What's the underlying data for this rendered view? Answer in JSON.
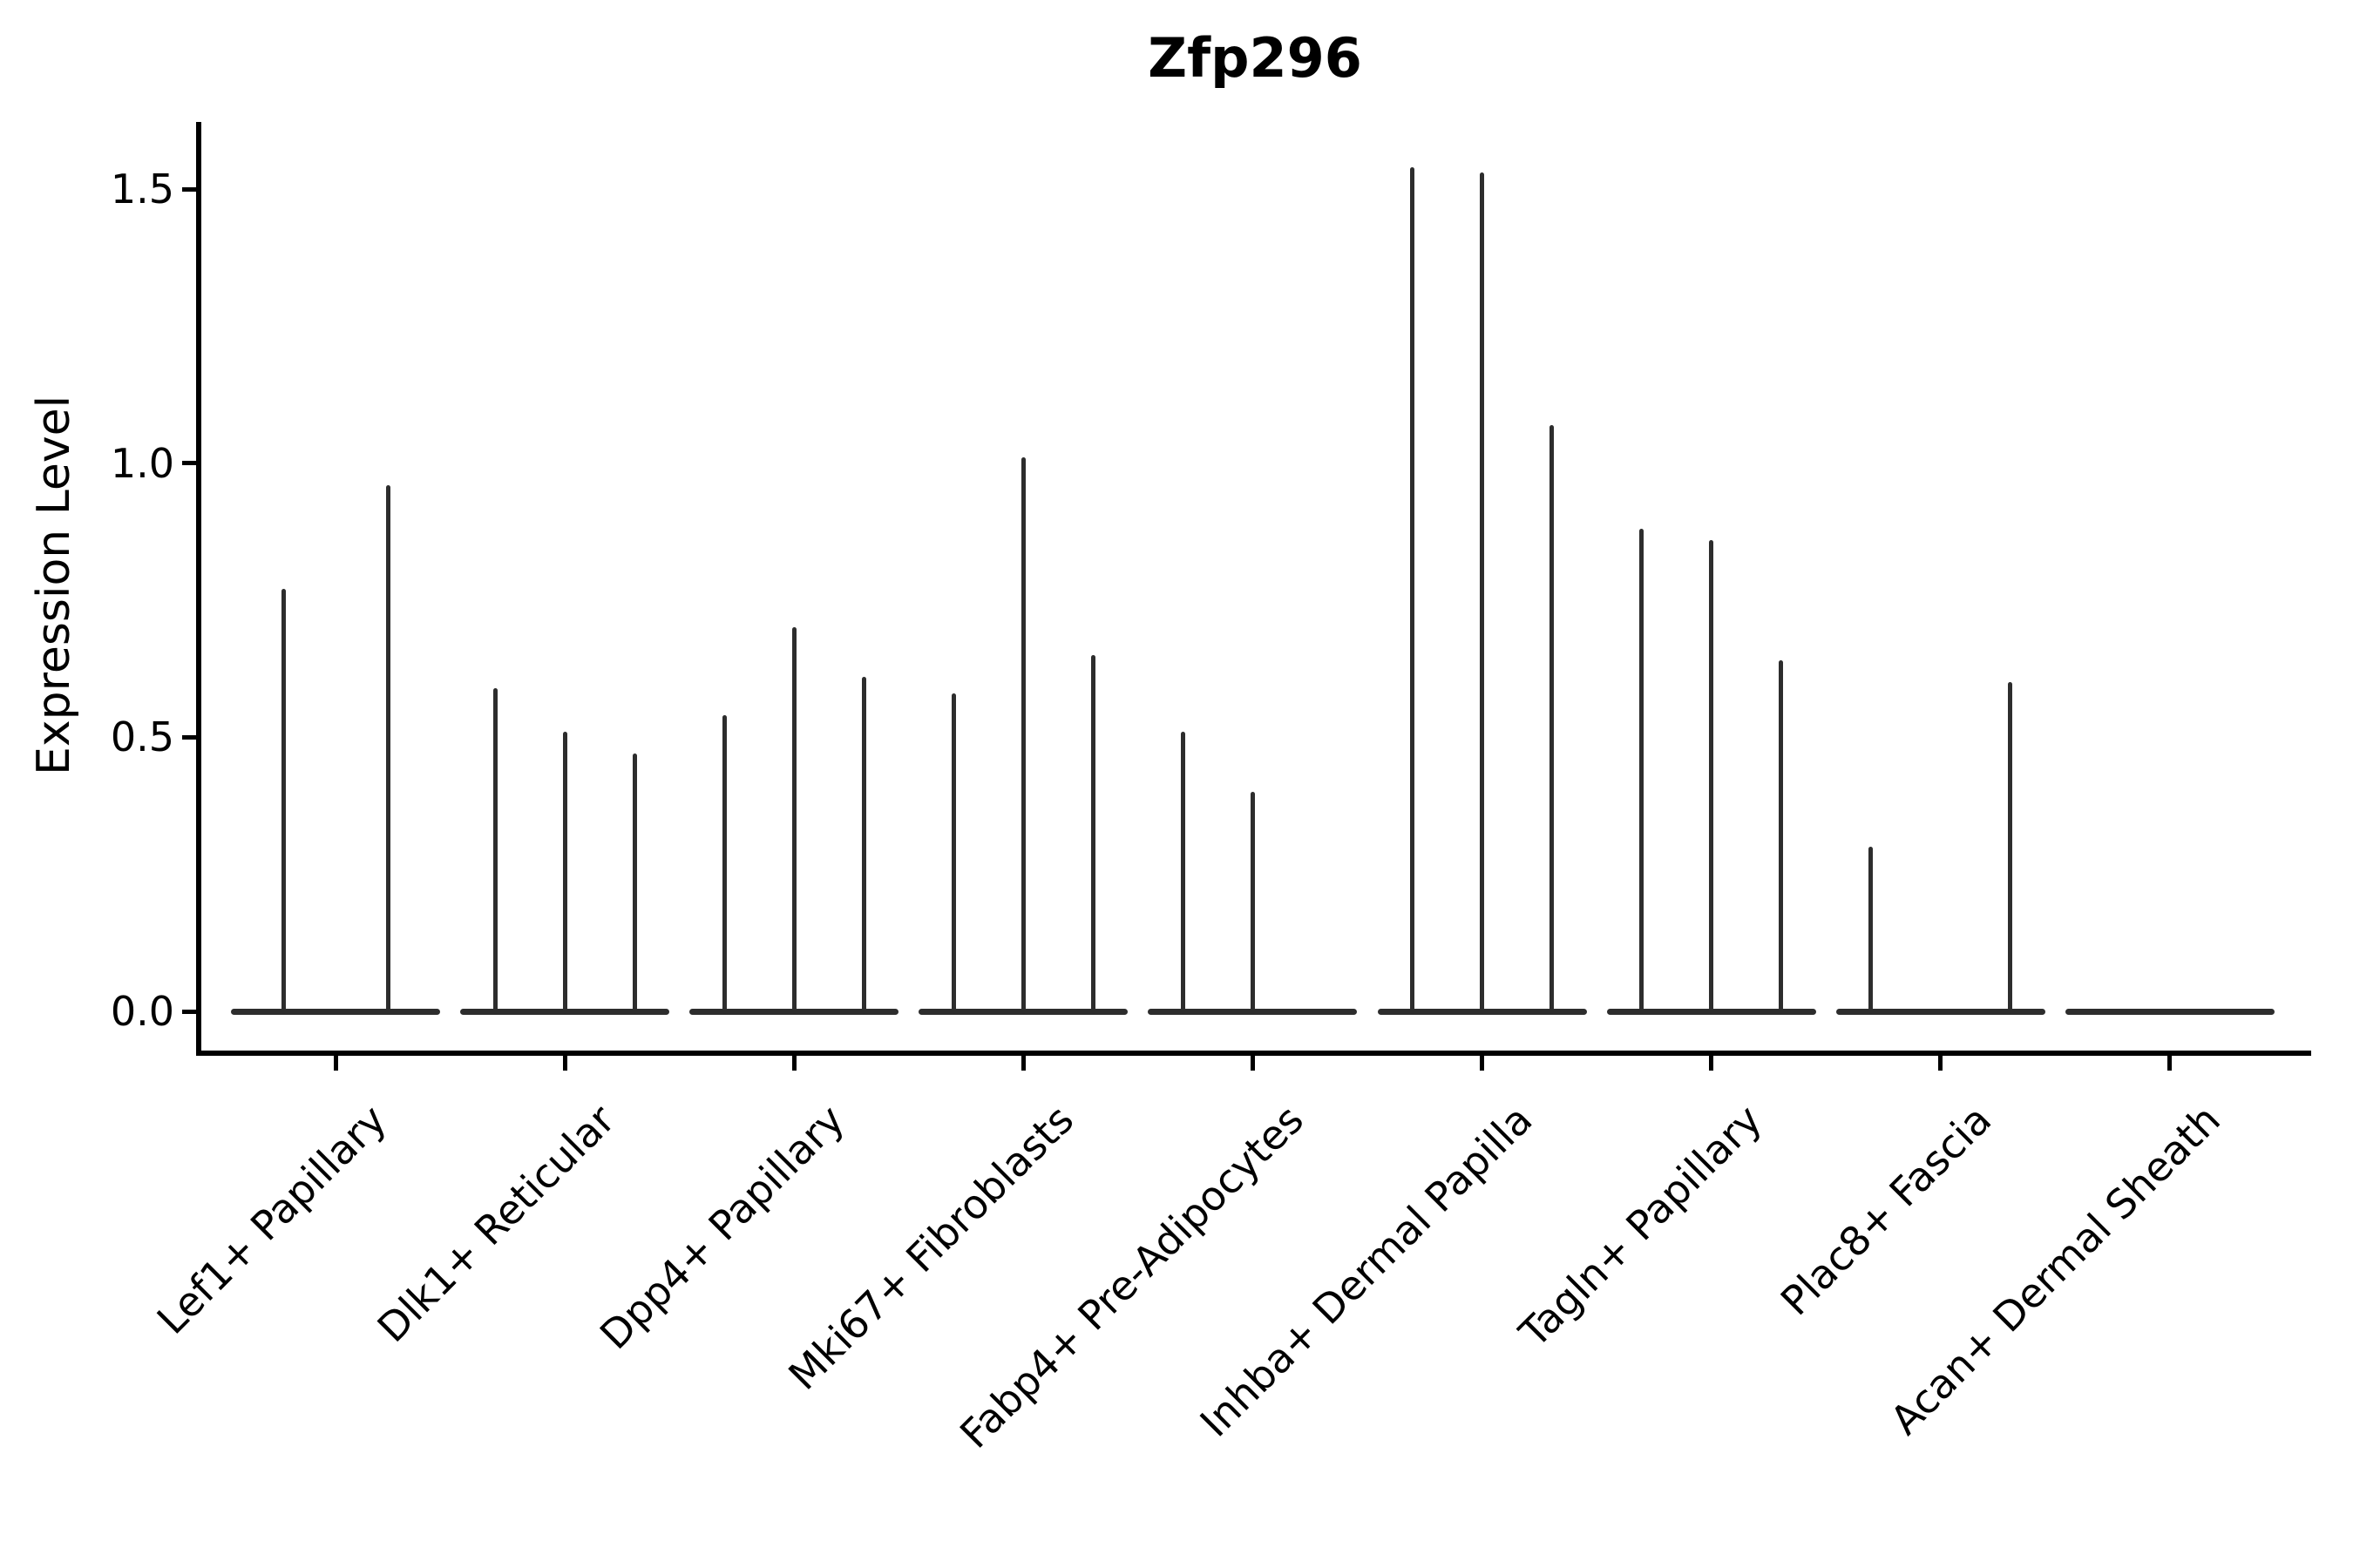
{
  "title": "Zfp296",
  "colors": {
    "background": "#ffffff",
    "violin_line": "#2d2d2d",
    "axis": "#000000",
    "text": "#000000"
  },
  "chart_data": {
    "type": "violin",
    "title": "Zfp296",
    "xlabel": "",
    "ylabel": "Expression Level",
    "ylim": [
      0,
      1.62
    ],
    "grid": false,
    "legend": "none",
    "yticks": [
      0.0,
      0.5,
      1.0,
      1.5
    ],
    "ytick_labels": [
      "0.0",
      "0.5",
      "1.0",
      "1.5"
    ],
    "categories": [
      "Lef1+ Papillary",
      "Dlk1+ Reticular",
      "Dpp4+ Papillary",
      "Mki67+ Fibroblasts",
      "Fabp4+ Pre-Adipocytes",
      "Inhba+ Dermal Papilla",
      "Tagln+ Papillary",
      "Plac8+ Fascia",
      "Acan+ Dermal Sheath"
    ],
    "groups": [
      {
        "label": "Lef1+ Papillary",
        "violin_max_values": [
          0.77,
          0.96
        ]
      },
      {
        "label": "Dlk1+ Reticular",
        "violin_max_values": [
          0.59,
          0.51,
          0.47
        ]
      },
      {
        "label": "Dpp4+ Papillary",
        "violin_max_values": [
          0.54,
          0.7,
          0.61
        ]
      },
      {
        "label": "Mki67+ Fibroblasts",
        "violin_max_values": [
          0.58,
          1.01,
          0.65
        ]
      },
      {
        "label": "Fabp4+ Pre-Adipocytes",
        "violin_max_values": [
          0.51,
          0.4,
          0
        ]
      },
      {
        "label": "Inhba+ Dermal Papilla",
        "violin_max_values": [
          1.54,
          1.53,
          1.07
        ]
      },
      {
        "label": "Tagln+ Papillary",
        "violin_max_values": [
          0.88,
          0.86,
          0.64
        ]
      },
      {
        "label": "Plac8+ Fascia",
        "violin_max_values": [
          0.3,
          0,
          0.6
        ]
      },
      {
        "label": "Acan+ Dermal Sheath",
        "violin_max_values": [
          0,
          0,
          0
        ]
      }
    ]
  }
}
